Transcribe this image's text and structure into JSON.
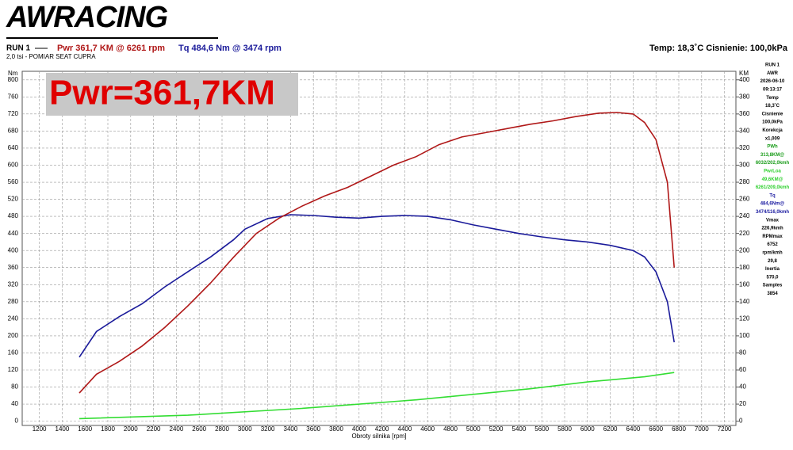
{
  "header": {
    "logo": "AWRACING",
    "run": "RUN 1",
    "pwr": "Pwr  361,7 KM @ 6261 rpm",
    "tq": "Tq 484,6 Nm @ 3474 rpm",
    "subtitle": "2,0 tsi - POMIAR SEAT CUPRA",
    "conditions": "Temp: 18,3˚C   Cisnienie: 100,0kPa"
  },
  "badge": "Pwr=361,7KM",
  "sidebar": [
    {
      "text": "RUN 1",
      "color": "#000"
    },
    {
      "text": "AWR",
      "color": "#000"
    },
    {
      "text": "2026-06-10",
      "color": "#000"
    },
    {
      "text": "09:13:17",
      "color": "#000"
    },
    {
      "text": "Temp",
      "color": "#000"
    },
    {
      "text": "18,3˚C",
      "color": "#000"
    },
    {
      "text": "Cisnienie",
      "color": "#000"
    },
    {
      "text": "100,0kPa",
      "color": "#000"
    },
    {
      "text": "Korekcja",
      "color": "#000"
    },
    {
      "text": "x1,009",
      "color": "#000"
    },
    {
      "text": "PWh",
      "color": "#1a9c1a"
    },
    {
      "text": "313,8KM@",
      "color": "#1a9c1a"
    },
    {
      "text": "6032/202,0kmh",
      "color": "#1a9c1a"
    },
    {
      "text": "PwrLoa",
      "color": "#2ed02e"
    },
    {
      "text": "49,6KM@",
      "color": "#2ed02e"
    },
    {
      "text": "6261/209,0kmh",
      "color": "#2ed02e"
    },
    {
      "text": "Tq",
      "color": "#1a1aa0"
    },
    {
      "text": "484,6Nm@",
      "color": "#1a1aa0"
    },
    {
      "text": "3474/116,0kmh",
      "color": "#1a1aa0"
    },
    {
      "text": "Vmax",
      "color": "#000"
    },
    {
      "text": "226,9kmh",
      "color": "#000"
    },
    {
      "text": "RPMmax",
      "color": "#000"
    },
    {
      "text": "6752",
      "color": "#000"
    },
    {
      "text": "rpm/kmh",
      "color": "#000"
    },
    {
      "text": "29,8",
      "color": "#000"
    },
    {
      "text": "Inertia",
      "color": "#000"
    },
    {
      "text": "570,0",
      "color": "#000"
    },
    {
      "text": "Samples",
      "color": "#000"
    },
    {
      "text": "3854",
      "color": "#000"
    }
  ],
  "chart_data": {
    "type": "line",
    "y_label": "Nm",
    "y2_label": "KM",
    "x_label": "Obroty silnika [rpm]",
    "grid": true,
    "xlim": [
      1050,
      7300
    ],
    "xticks": [
      1200,
      1400,
      1600,
      1800,
      2000,
      2200,
      2400,
      2600,
      2800,
      3000,
      3200,
      3400,
      3600,
      3800,
      4000,
      4200,
      4400,
      4600,
      4800,
      5000,
      5200,
      5400,
      5600,
      5800,
      6000,
      6200,
      6400,
      6600,
      6800,
      7000,
      7200
    ],
    "ylim": [
      -10,
      820
    ],
    "yticks": [
      0,
      40,
      80,
      120,
      160,
      200,
      240,
      280,
      320,
      360,
      400,
      440,
      480,
      520,
      560,
      600,
      640,
      680,
      720,
      760,
      800
    ],
    "y2lim": [
      -5,
      410
    ],
    "y2ticks": [
      0,
      20,
      40,
      60,
      80,
      100,
      120,
      140,
      160,
      180,
      200,
      220,
      240,
      260,
      280,
      300,
      320,
      340,
      360,
      380,
      400
    ],
    "series": [
      {
        "name": "Tq",
        "color": "#1a1a9a",
        "axis": "y",
        "x": [
          1550,
          1700,
          1900,
          2100,
          2300,
          2500,
          2700,
          2900,
          3000,
          3200,
          3400,
          3600,
          3800,
          4000,
          4200,
          4400,
          4600,
          4800,
          5000,
          5200,
          5400,
          5600,
          5800,
          6000,
          6200,
          6400,
          6500,
          6600,
          6700,
          6760
        ],
        "values": [
          150,
          210,
          245,
          275,
          315,
          350,
          385,
          425,
          450,
          475,
          484,
          482,
          478,
          476,
          480,
          482,
          480,
          472,
          460,
          450,
          440,
          432,
          425,
          420,
          412,
          400,
          385,
          350,
          280,
          185
        ]
      },
      {
        "name": "Pwr",
        "color": "#b01818",
        "axis": "y2",
        "x": [
          1550,
          1700,
          1900,
          2100,
          2300,
          2500,
          2700,
          2900,
          3100,
          3300,
          3500,
          3700,
          3900,
          4100,
          4300,
          4500,
          4700,
          4900,
          5100,
          5300,
          5500,
          5700,
          5900,
          6100,
          6261,
          6400,
          6500,
          6600,
          6700,
          6760
        ],
        "values": [
          33,
          55,
          70,
          88,
          110,
          135,
          162,
          192,
          220,
          238,
          252,
          264,
          274,
          287,
          300,
          310,
          324,
          333,
          338,
          343,
          348,
          352,
          357,
          361,
          361.7,
          360,
          350,
          330,
          280,
          180
        ]
      },
      {
        "name": "PwrLoa",
        "color": "#33dd33",
        "axis": "y2",
        "x": [
          1550,
          2500,
          3500,
          4500,
          5500,
          6000,
          6500,
          6760
        ],
        "values": [
          3,
          7,
          15,
          25,
          38,
          46,
          52,
          57
        ]
      }
    ]
  }
}
